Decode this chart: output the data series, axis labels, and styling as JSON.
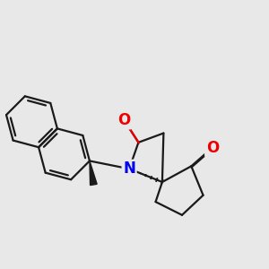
{
  "bg_color": "#e8e8e8",
  "bond_color": "#1a1a1a",
  "N_color": "#0000ee",
  "O_color": "#ee0000",
  "lw": 1.6,
  "figsize": [
    3.0,
    3.0
  ],
  "dpi": 100,
  "xlim": [
    -1.5,
    8.5
  ],
  "ylim": [
    -2.5,
    5.5
  ]
}
